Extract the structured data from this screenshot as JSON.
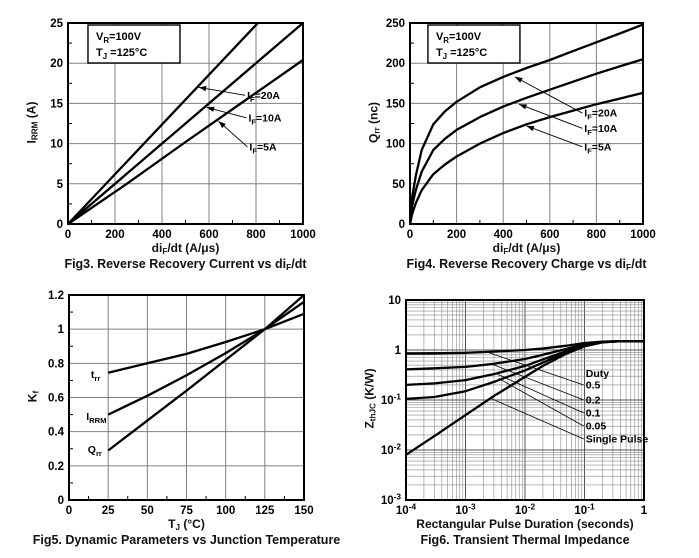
{
  "page": {
    "background": "#ffffff",
    "ink": "#000000",
    "grid_color": "#808080",
    "description": "Datasheet characteristic curves page with four figures"
  },
  "chart_data": [
    {
      "id": "fig3",
      "type": "line",
      "caption": "Fig3. Reverse Recovery Current vs di_{F}/dt",
      "xlabel": "di_{F}/dt (A/μs)",
      "ylabel": "I_{RRM} (A)",
      "x": {
        "scale": "linear",
        "min": 0,
        "max": 1000,
        "ticks": [
          [
            0,
            "0"
          ],
          [
            200,
            "200"
          ],
          [
            400,
            "400"
          ],
          [
            600,
            "600"
          ],
          [
            800,
            "800"
          ],
          [
            1000,
            "1000"
          ]
        ]
      },
      "y": {
        "scale": "linear",
        "min": 0,
        "max": 25,
        "ticks": [
          [
            0,
            "0"
          ],
          [
            5,
            "5"
          ],
          [
            10,
            "10"
          ],
          [
            15,
            "15"
          ],
          [
            20,
            "20"
          ],
          [
            25,
            "25"
          ]
        ]
      },
      "infobox": {
        "lines": [
          "V_{R}=100V",
          "T_{J} =125°C"
        ],
        "x": 85,
        "y": 24.75
      },
      "series": [
        {
          "name": "I_{F}=20A",
          "points": [
            [
              0,
              0
            ],
            [
              808,
              25
            ]
          ]
        },
        {
          "name": "I_{F}=10A",
          "points": [
            [
              0,
              0
            ],
            [
              1000,
              25
            ]
          ]
        },
        {
          "name": "I_{F}=5A",
          "points": [
            [
              0,
              0
            ],
            [
              250,
              5.0
            ],
            [
              500,
              10.2
            ],
            [
              750,
              15.3
            ],
            [
              1000,
              20.4
            ]
          ]
        }
      ],
      "callouts": [
        {
          "text": "I_{F}=20A",
          "x": 762,
          "y": 16.0,
          "tip": [
            556,
            17.0
          ],
          "arrow": true
        },
        {
          "text": "I_{F}=10A",
          "x": 768,
          "y": 13.2,
          "tip": [
            590,
            14.5
          ],
          "arrow": true
        },
        {
          "text": "I_{F}=5A",
          "x": 772,
          "y": 9.6,
          "tip": [
            640,
            12.8
          ],
          "arrow": true
        }
      ]
    },
    {
      "id": "fig4",
      "type": "line",
      "caption": "Fig4. Reverse Recovery Charge vs di_{F}/dt",
      "xlabel": "di_{F}/dt (A/μs)",
      "ylabel": "Q_{rr} (nc)",
      "x": {
        "scale": "linear",
        "min": 0,
        "max": 1000,
        "ticks": [
          [
            0,
            "0"
          ],
          [
            200,
            "200"
          ],
          [
            400,
            "400"
          ],
          [
            600,
            "600"
          ],
          [
            800,
            "800"
          ],
          [
            1000,
            "1000"
          ]
        ]
      },
      "y": {
        "scale": "linear",
        "min": 0,
        "max": 250,
        "ticks": [
          [
            0,
            "0"
          ],
          [
            50,
            "50"
          ],
          [
            100,
            "100"
          ],
          [
            150,
            "150"
          ],
          [
            200,
            "200"
          ],
          [
            250,
            "250"
          ]
        ]
      },
      "infobox": {
        "lines": [
          "V_{R}=100V",
          "T_{J} =125°C"
        ],
        "x": 77,
        "y": 247.5
      },
      "series": [
        {
          "name": "I_{F}=20A",
          "points": [
            [
              0,
              0
            ],
            [
              10,
              35
            ],
            [
              25,
              60
            ],
            [
              50,
              92
            ],
            [
              100,
              124
            ],
            [
              150,
              140
            ],
            [
              200,
              152
            ],
            [
              300,
              170
            ],
            [
              400,
              183
            ],
            [
              500,
              194
            ],
            [
              600,
              204
            ],
            [
              700,
              215
            ],
            [
              800,
              226
            ],
            [
              900,
              237
            ],
            [
              1000,
              248
            ]
          ]
        },
        {
          "name": "I_{F}=10A",
          "points": [
            [
              0,
              0
            ],
            [
              10,
              24
            ],
            [
              25,
              42
            ],
            [
              50,
              65
            ],
            [
              100,
              92
            ],
            [
              150,
              106
            ],
            [
              200,
              117
            ],
            [
              300,
              133
            ],
            [
              400,
              146
            ],
            [
              500,
              157
            ],
            [
              600,
              167
            ],
            [
              700,
              177
            ],
            [
              800,
              187
            ],
            [
              900,
              196
            ],
            [
              1000,
              205
            ]
          ]
        },
        {
          "name": "I_{F}=5A",
          "points": [
            [
              0,
              0
            ],
            [
              10,
              13
            ],
            [
              25,
              26
            ],
            [
              50,
              42
            ],
            [
              100,
              62
            ],
            [
              150,
              74
            ],
            [
              200,
              84
            ],
            [
              300,
              100
            ],
            [
              400,
              113
            ],
            [
              500,
              124
            ],
            [
              600,
              133
            ],
            [
              700,
              141
            ],
            [
              800,
              149
            ],
            [
              900,
              156
            ],
            [
              1000,
              163
            ]
          ]
        }
      ],
      "callouts": [
        {
          "text": "I_{F}=20A",
          "x": 748,
          "y": 138,
          "tip": [
            450,
            183
          ],
          "arrow": true
        },
        {
          "text": "I_{F}=10A",
          "x": 748,
          "y": 119,
          "tip": [
            468,
            149
          ],
          "arrow": true
        },
        {
          "text": "I_{F}=5A",
          "x": 748,
          "y": 96,
          "tip": [
            500,
            122
          ],
          "arrow": true
        }
      ]
    },
    {
      "id": "fig5",
      "type": "line",
      "caption": "Fig5. Dynamic Parameters vs Junction Temperature",
      "xlabel": "T_{J} (°C)",
      "ylabel": "K_{f}",
      "x": {
        "scale": "linear",
        "min": 0,
        "max": 150,
        "ticks": [
          [
            0,
            "0"
          ],
          [
            25,
            "25"
          ],
          [
            50,
            "50"
          ],
          [
            75,
            "75"
          ],
          [
            100,
            "100"
          ],
          [
            125,
            "125"
          ],
          [
            150,
            "150"
          ]
        ]
      },
      "y": {
        "scale": "linear",
        "min": 0,
        "max": 1.2,
        "ticks": [
          [
            0,
            "0"
          ],
          [
            0.2,
            "0.2"
          ],
          [
            0.4,
            "0.4"
          ],
          [
            0.6,
            "0.6"
          ],
          [
            0.8,
            "0.8"
          ],
          [
            1,
            "1"
          ],
          [
            1.2,
            "1.2"
          ]
        ]
      },
      "series": [
        {
          "name": "t_{rr}",
          "points": [
            [
              25,
              0.745
            ],
            [
              50,
              0.8
            ],
            [
              75,
              0.855
            ],
            [
              100,
              0.925
            ],
            [
              125,
              1.0
            ],
            [
              150,
              1.09
            ]
          ]
        },
        {
          "name": "I_{RRM}",
          "points": [
            [
              25,
              0.5
            ],
            [
              50,
              0.61
            ],
            [
              75,
              0.73
            ],
            [
              100,
              0.86
            ],
            [
              125,
              1.0
            ],
            [
              150,
              1.16
            ]
          ]
        },
        {
          "name": "Q_{rr}",
          "points": [
            [
              25,
              0.29
            ],
            [
              50,
              0.465
            ],
            [
              75,
              0.64
            ],
            [
              100,
              0.82
            ],
            [
              125,
              1.0
            ],
            [
              150,
              1.2
            ]
          ]
        }
      ],
      "callouts": [
        {
          "text": "t_{rr}",
          "x": 14,
          "y": 0.735
        },
        {
          "text": "I_{RRM}",
          "x": 11,
          "y": 0.49
        },
        {
          "text": "Q_{rr}",
          "x": 12,
          "y": 0.295
        }
      ],
      "crossing_point": {
        "x": 125,
        "y": 1.0
      }
    },
    {
      "id": "fig6",
      "type": "line",
      "caption": "Fig6. Transient Thermal Impedance",
      "xlabel": "Rectangular Pulse Duration (seconds)",
      "ylabel": "Z_{thJC} (K/W)",
      "x": {
        "scale": "log",
        "min": 0.0001,
        "max": 1,
        "ticks": [
          [
            0.0001,
            "10^{-4}"
          ],
          [
            0.001,
            "10^{-3}"
          ],
          [
            0.01,
            "10^{-2}"
          ],
          [
            0.1,
            "10^{-1}"
          ],
          [
            1,
            "1"
          ]
        ]
      },
      "y": {
        "scale": "log",
        "min": 0.001,
        "max": 10,
        "ticks": [
          [
            10,
            "10"
          ],
          [
            1,
            "1"
          ],
          [
            0.1,
            "10^{-1}"
          ],
          [
            0.01,
            "10^{-2}"
          ],
          [
            0.001,
            "10^{-3}"
          ]
        ]
      },
      "series": [
        {
          "name": "0.5",
          "points": [
            [
              0.0001,
              0.85
            ],
            [
              0.0003,
              0.86
            ],
            [
              0.001,
              0.88
            ],
            [
              0.003,
              0.93
            ],
            [
              0.01,
              1.0
            ],
            [
              0.02,
              1.07
            ],
            [
              0.05,
              1.22
            ],
            [
              0.1,
              1.38
            ],
            [
              0.2,
              1.47
            ],
            [
              0.4,
              1.5
            ],
            [
              1,
              1.5
            ]
          ]
        },
        {
          "name": "0.2",
          "points": [
            [
              0.0001,
              0.41
            ],
            [
              0.0003,
              0.43
            ],
            [
              0.001,
              0.46
            ],
            [
              0.003,
              0.53
            ],
            [
              0.01,
              0.66
            ],
            [
              0.02,
              0.8
            ],
            [
              0.05,
              1.05
            ],
            [
              0.1,
              1.3
            ],
            [
              0.2,
              1.45
            ],
            [
              0.4,
              1.5
            ],
            [
              1,
              1.5
            ]
          ]
        },
        {
          "name": "0.1",
          "points": [
            [
              0.0001,
              0.2
            ],
            [
              0.0003,
              0.215
            ],
            [
              0.001,
              0.25
            ],
            [
              0.003,
              0.33
            ],
            [
              0.01,
              0.48
            ],
            [
              0.02,
              0.65
            ],
            [
              0.05,
              0.95
            ],
            [
              0.1,
              1.25
            ],
            [
              0.2,
              1.44
            ],
            [
              0.4,
              1.5
            ],
            [
              1,
              1.5
            ]
          ]
        },
        {
          "name": "0.05",
          "points": [
            [
              0.0001,
              0.105
            ],
            [
              0.0003,
              0.115
            ],
            [
              0.001,
              0.15
            ],
            [
              0.003,
              0.23
            ],
            [
              0.01,
              0.39
            ],
            [
              0.02,
              0.56
            ],
            [
              0.05,
              0.9
            ],
            [
              0.1,
              1.22
            ],
            [
              0.2,
              1.43
            ],
            [
              0.4,
              1.5
            ],
            [
              1,
              1.5
            ]
          ]
        },
        {
          "name": "Single Pulse",
          "points": [
            [
              0.0001,
              0.008
            ],
            [
              0.0003,
              0.019
            ],
            [
              0.001,
              0.05
            ],
            [
              0.003,
              0.12
            ],
            [
              0.01,
              0.29
            ],
            [
              0.02,
              0.48
            ],
            [
              0.05,
              0.85
            ],
            [
              0.1,
              1.18
            ],
            [
              0.2,
              1.42
            ],
            [
              0.4,
              1.5
            ],
            [
              1,
              1.5
            ]
          ]
        }
      ],
      "legend": {
        "title": "Duty",
        "x": 0.105,
        "title_y": 0.34,
        "items": [
          {
            "label": "0.5",
            "y": 0.2,
            "tip": [
              0.0023,
              0.91
            ]
          },
          {
            "label": "0.2",
            "y": 0.1,
            "tip": [
              0.0028,
              0.52
            ]
          },
          {
            "label": "0.1",
            "y": 0.055,
            "tip": [
              0.0032,
              0.34
            ]
          },
          {
            "label": "0.05",
            "y": 0.03,
            "tip": [
              0.0036,
              0.27
            ]
          },
          {
            "label": "Single Pulse",
            "y": 0.0166,
            "tip": [
              0.0028,
              0.105
            ]
          }
        ]
      }
    }
  ]
}
